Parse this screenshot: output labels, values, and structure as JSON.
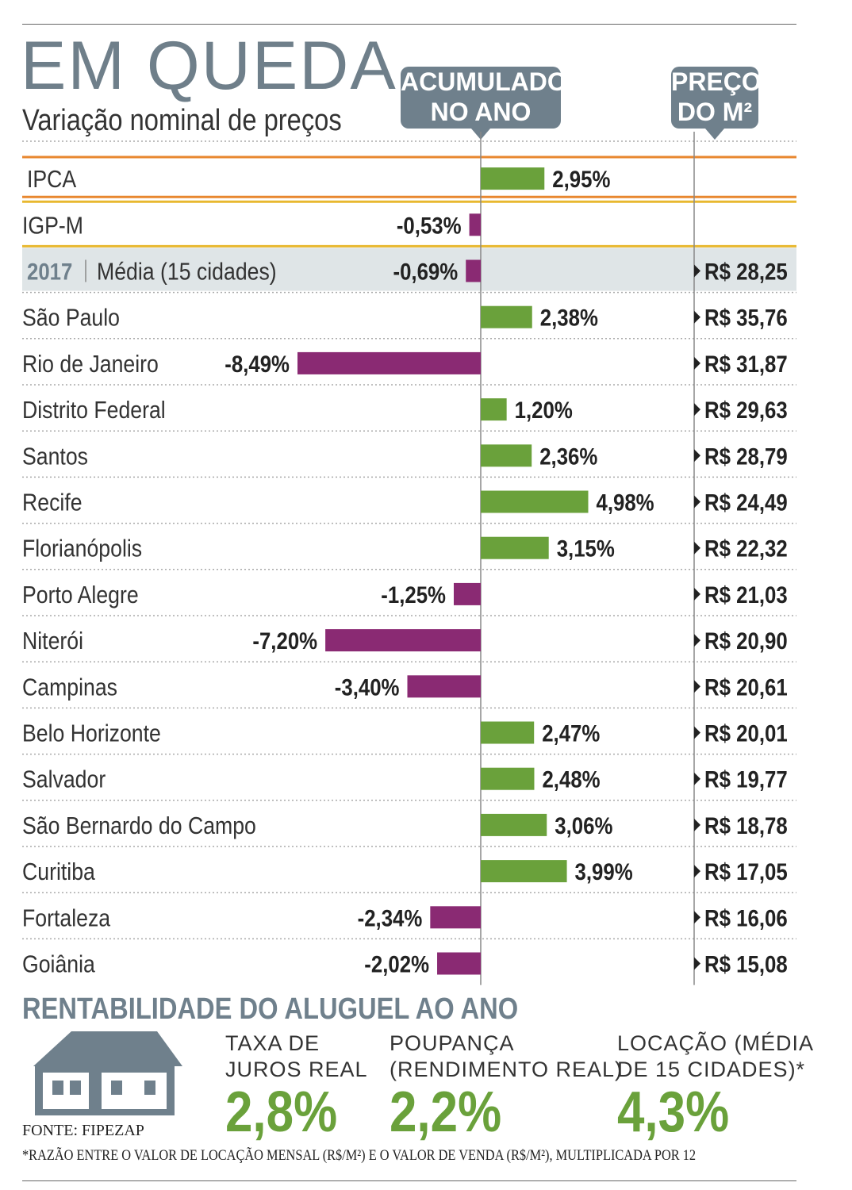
{
  "header": {
    "title": "EM QUEDA",
    "subtitle": "Variação nominal de preços",
    "col_acc_line1": "ACUMULADO",
    "col_acc_line2": "NO ANO",
    "col_price_line1": "PREÇO",
    "col_price_line2": "DO M²"
  },
  "colors": {
    "positive": "#6aa13b",
    "negative": "#8a2a73",
    "ipca_line": "#e8872f",
    "igpm_line": "#e8b830",
    "highlight_bg": "#dfe5e7",
    "accent_gray": "#6f808c"
  },
  "chart_data": {
    "type": "bar",
    "orientation": "horizontal",
    "title": "EM QUEDA",
    "subtitle": "Variação nominal de preços",
    "value_column": "ACUMULADO NO ANO",
    "price_column": "PREÇO DO M²",
    "xlim": [
      -8.49,
      4.98
    ],
    "rows": [
      {
        "label": "IPCA",
        "value": 2.95,
        "value_label": "2,95%",
        "price": ""
      },
      {
        "label": "IGP-M",
        "value": -0.53,
        "value_label": "-0,53%",
        "price": ""
      },
      {
        "year": "2017",
        "label": "Média (15 cidades)",
        "value": -0.69,
        "value_label": "-0,69%",
        "price": "R$ 28,25"
      },
      {
        "label": "São Paulo",
        "value": 2.38,
        "value_label": "2,38%",
        "price": "R$ 35,76"
      },
      {
        "label": "Rio de Janeiro",
        "value": -8.49,
        "value_label": "-8,49%",
        "price": "R$ 31,87"
      },
      {
        "label": "Distrito Federal",
        "value": 1.2,
        "value_label": "1,20%",
        "price": "R$ 29,63"
      },
      {
        "label": "Santos",
        "value": 2.36,
        "value_label": "2,36%",
        "price": "R$ 28,79"
      },
      {
        "label": "Recife",
        "value": 4.98,
        "value_label": "4,98%",
        "price": "R$ 24,49"
      },
      {
        "label": "Florianópolis",
        "value": 3.15,
        "value_label": "3,15%",
        "price": "R$ 22,32"
      },
      {
        "label": "Porto Alegre",
        "value": -1.25,
        "value_label": "-1,25%",
        "price": "R$ 21,03"
      },
      {
        "label": "Niterói",
        "value": -7.2,
        "value_label": "-7,20%",
        "price": "R$ 20,90"
      },
      {
        "label": "Campinas",
        "value": -3.4,
        "value_label": "-3,40%",
        "price": "R$ 20,61"
      },
      {
        "label": "Belo Horizonte",
        "value": 2.47,
        "value_label": "2,47%",
        "price": "R$ 20,01"
      },
      {
        "label": "Salvador",
        "value": 2.48,
        "value_label": "2,48%",
        "price": "R$ 19,77"
      },
      {
        "label": "São Bernardo do Campo",
        "value": 3.06,
        "value_label": "3,06%",
        "price": "R$ 18,78"
      },
      {
        "label": "Curitiba",
        "value": 3.99,
        "value_label": "3,99%",
        "price": "R$ 17,05"
      },
      {
        "label": "Fortaleza",
        "value": -2.34,
        "value_label": "-2,34%",
        "price": "R$ 16,06"
      },
      {
        "label": "Goiânia",
        "value": -2.02,
        "value_label": "-2,02%",
        "price": "R$ 15,08"
      }
    ]
  },
  "rentabilidade": {
    "title": "RENTABILIDADE DO ALUGUEL AO ANO",
    "items": [
      {
        "label_line1": "TAXA DE",
        "label_line2": "JUROS REAL",
        "value": "2,8%"
      },
      {
        "label_line1": "POUPANÇA",
        "label_line2": "(RENDIMENTO REAL)",
        "value": "2,2%"
      },
      {
        "label_line1": "LOCAÇÃO (MÉDIA",
        "label_line2": "DE 15 CIDADES)*",
        "value": "4,3%"
      }
    ]
  },
  "source": "FONTE: FIPEZAP",
  "footnote": "*RAZÃO ENTRE O VALOR DE LOCAÇÃO MENSAL (R$/M²) E O VALOR DE VENDA (R$/M²), MULTIPLICADA POR 12"
}
